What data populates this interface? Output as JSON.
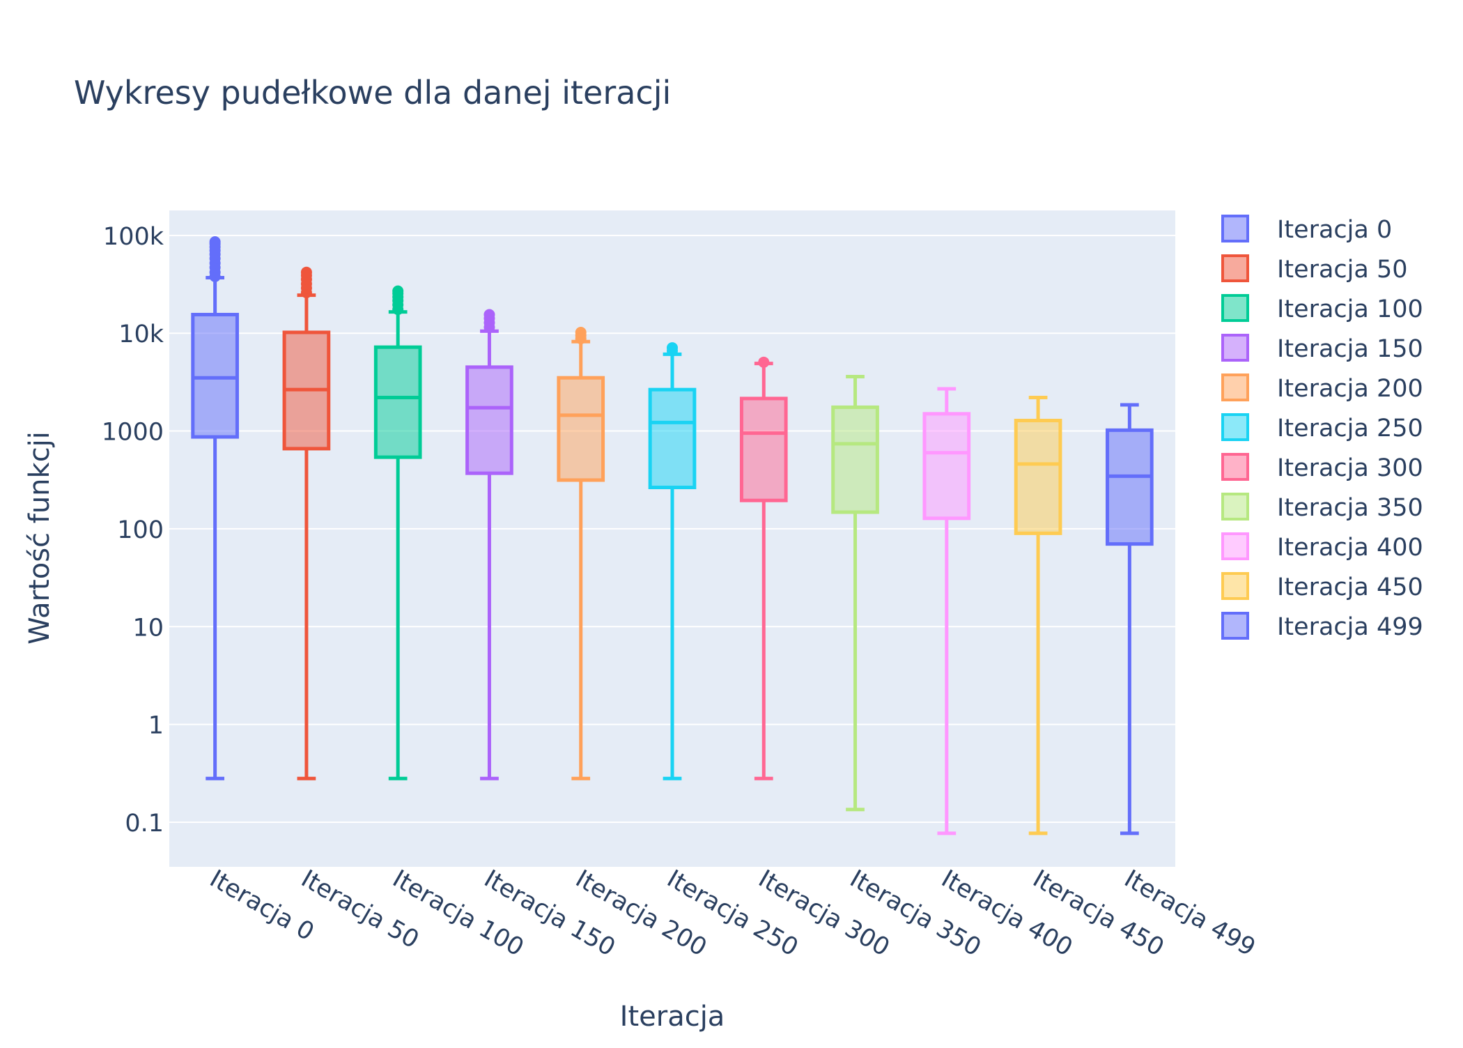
{
  "chart_data": {
    "type": "box",
    "title": "Wykresy pudełkowe dla danej iteracji",
    "xlabel": "Iteracja",
    "ylabel": "Wartość funkcji",
    "y_scale": "log",
    "ylim": [
      0.035,
      180000
    ],
    "y_ticks": [
      {
        "value": 0.1,
        "label": "0.1"
      },
      {
        "value": 1,
        "label": "1"
      },
      {
        "value": 10,
        "label": "10"
      },
      {
        "value": 100,
        "label": "100"
      },
      {
        "value": 1000,
        "label": "1000"
      },
      {
        "value": 10000,
        "label": "10k"
      },
      {
        "value": 100000,
        "label": "100k"
      }
    ],
    "grid": true,
    "legend_position": "right",
    "plot_background": "#e5ecf6",
    "series": [
      {
        "name": "Iteracja 0",
        "color": "#636efa",
        "min": 0.28,
        "q1": 870,
        "median": 3500,
        "q3": 15500,
        "upper_fence": 37000,
        "outliers": [
          38000,
          42000,
          47000,
          52000,
          58000,
          64000,
          70000,
          76000,
          82000,
          86000
        ]
      },
      {
        "name": "Iteracja 50",
        "color": "#ef553b",
        "min": 0.28,
        "q1": 660,
        "median": 2650,
        "q3": 10200,
        "upper_fence": 24500,
        "outliers": [
          26000,
          29000,
          32000,
          35500,
          39000,
          42000
        ]
      },
      {
        "name": "Iteracja 100",
        "color": "#00cc96",
        "min": 0.28,
        "q1": 540,
        "median": 2200,
        "q3": 7200,
        "upper_fence": 16500,
        "outliers": [
          17500,
          19500,
          21500,
          23500,
          25500,
          27000
        ]
      },
      {
        "name": "Iteracja 150",
        "color": "#ab63fa",
        "min": 0.28,
        "q1": 370,
        "median": 1730,
        "q3": 4500,
        "upper_fence": 10500,
        "outliers": [
          11500,
          12800,
          14200,
          15500
        ]
      },
      {
        "name": "Iteracja 200",
        "color": "#ffa15a",
        "min": 0.28,
        "q1": 315,
        "median": 1450,
        "q3": 3500,
        "upper_fence": 8200,
        "outliers": [
          8800,
          9500,
          10200
        ]
      },
      {
        "name": "Iteracja 250",
        "color": "#19d3f3",
        "min": 0.28,
        "q1": 265,
        "median": 1220,
        "q3": 2650,
        "upper_fence": 6100,
        "outliers": [
          6600,
          7100
        ]
      },
      {
        "name": "Iteracja 300",
        "color": "#ff6692",
        "min": 0.28,
        "q1": 195,
        "median": 950,
        "q3": 2150,
        "upper_fence": 4900,
        "outliers": [
          5050
        ]
      },
      {
        "name": "Iteracja 350",
        "color": "#b6e880",
        "min": 0.135,
        "q1": 148,
        "median": 740,
        "q3": 1750,
        "upper_fence": 3600,
        "outliers": []
      },
      {
        "name": "Iteracja 400",
        "color": "#ff97ff",
        "min": 0.077,
        "q1": 128,
        "median": 600,
        "q3": 1500,
        "upper_fence": 2700,
        "outliers": []
      },
      {
        "name": "Iteracja 450",
        "color": "#fecb52",
        "min": 0.077,
        "q1": 90,
        "median": 460,
        "q3": 1280,
        "upper_fence": 2200,
        "outliers": []
      },
      {
        "name": "Iteracja 499",
        "color": "#636efa",
        "min": 0.077,
        "q1": 70,
        "median": 345,
        "q3": 1020,
        "upper_fence": 1850,
        "outliers": []
      }
    ]
  }
}
